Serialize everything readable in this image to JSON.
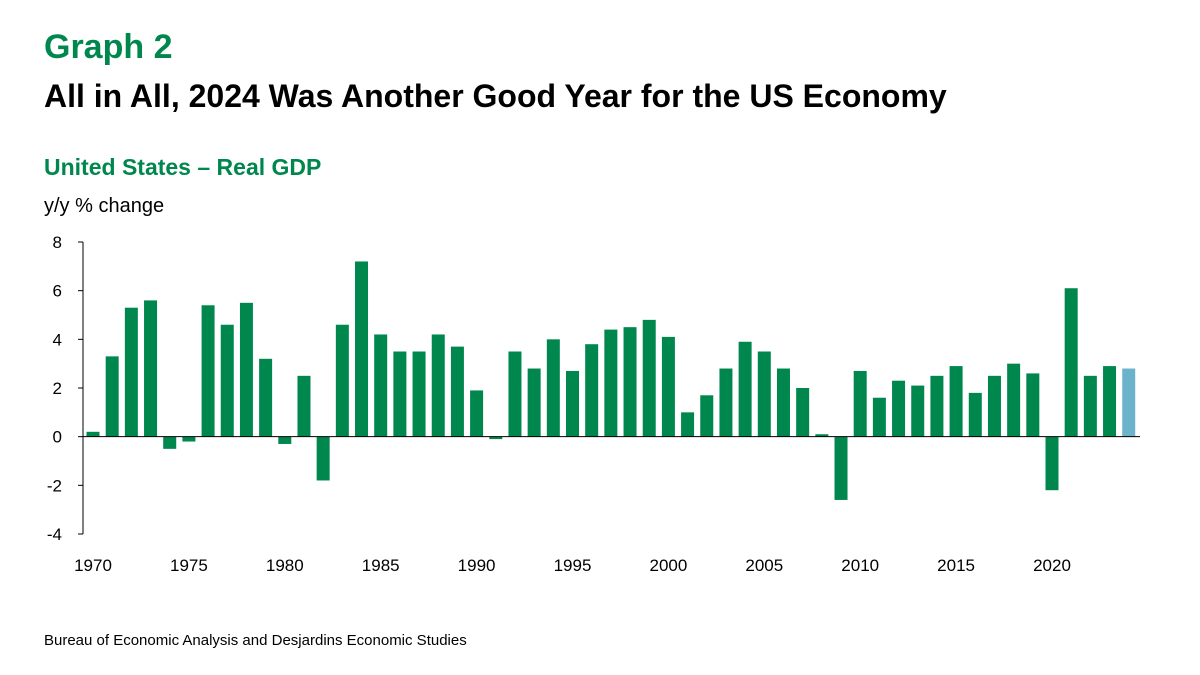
{
  "header": {
    "graph_label": "Graph 2",
    "title": "All in All, 2024 Was Another Good Year for the US Economy"
  },
  "source": "Bureau of Economic Analysis and Desjardins Economic Studies",
  "chart_data": {
    "type": "bar",
    "title": "United States – Real GDP",
    "ylabel": "y/y % change",
    "xlabel": "",
    "ylim": [
      -4,
      8
    ],
    "yticks": [
      -4,
      -2,
      0,
      2,
      4,
      6,
      8
    ],
    "xticks": [
      1970,
      1975,
      1980,
      1985,
      1990,
      1995,
      2000,
      2005,
      2010,
      2015,
      2020
    ],
    "grid": false,
    "colors": {
      "actual": "#00874e",
      "latest": "#6cb2cb"
    },
    "categories": [
      1970,
      1971,
      1972,
      1973,
      1974,
      1975,
      1976,
      1977,
      1978,
      1979,
      1980,
      1981,
      1982,
      1983,
      1984,
      1985,
      1986,
      1987,
      1988,
      1989,
      1990,
      1991,
      1992,
      1993,
      1994,
      1995,
      1996,
      1997,
      1998,
      1999,
      2000,
      2001,
      2002,
      2003,
      2004,
      2005,
      2006,
      2007,
      2008,
      2009,
      2010,
      2011,
      2012,
      2013,
      2014,
      2015,
      2016,
      2017,
      2018,
      2019,
      2020,
      2021,
      2022,
      2023,
      2024
    ],
    "values": [
      0.2,
      3.3,
      5.3,
      5.6,
      -0.5,
      -0.2,
      5.4,
      4.6,
      5.5,
      3.2,
      -0.3,
      2.5,
      -1.8,
      4.6,
      7.2,
      4.2,
      3.5,
      3.5,
      4.2,
      3.7,
      1.9,
      -0.1,
      3.5,
      2.8,
      4.0,
      2.7,
      3.8,
      4.4,
      4.5,
      4.8,
      4.1,
      1.0,
      1.7,
      2.8,
      3.9,
      3.5,
      2.8,
      2.0,
      0.1,
      -2.6,
      2.7,
      1.6,
      2.3,
      2.1,
      2.5,
      2.9,
      1.8,
      2.5,
      3.0,
      2.6,
      -2.2,
      6.1,
      2.5,
      2.9,
      2.8
    ]
  }
}
